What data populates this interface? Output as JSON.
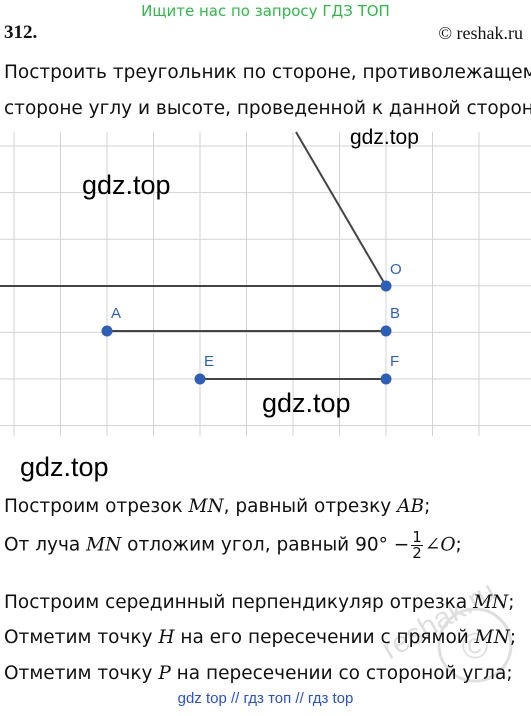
{
  "header": {
    "banner": "Ищите нас по запросу ГДЗ ТОП",
    "problem_number": "312.",
    "copyright": "© reshak.ru"
  },
  "task": {
    "line1": "Построить треугольник по стороне, противолежащему",
    "line2": "стороне углу и высоте, проведенной к данной стороне:"
  },
  "watermarks": {
    "w1": "gdz.top",
    "w2": "gdz.top",
    "w3": "gdz.top",
    "w4": "gdz.top"
  },
  "figure": {
    "points": [
      {
        "label": "O"
      },
      {
        "label": "A"
      },
      {
        "label": "B"
      },
      {
        "label": "E"
      },
      {
        "label": "F"
      }
    ],
    "point_color": "#2e5fb8",
    "grid_color": "#d3d3d3"
  },
  "solution": {
    "s1_pre": "Построим отрезок ",
    "s1_m1": "MN",
    "s1_mid": ", равный отрезку ",
    "s1_m2": "AB",
    "s1_end": ";",
    "s2_pre": "От луча ",
    "s2_m1": "MN",
    "s2_mid": " отложим угол, равный 90° −",
    "s2_num": "1",
    "s2_den": "2",
    "s2_angle": "∠O",
    "s2_end": ";",
    "s3_pre": "Построим серединный перпендикуляр отрезка ",
    "s3_m1": "MN",
    "s3_end": ";",
    "s4_pre": "Отметим точку ",
    "s4_m1": "H",
    "s4_mid": " на его пересечении с прямой ",
    "s4_m2": "MN",
    "s4_end": ";",
    "s5_pre": "Отметим точку ",
    "s5_m1": "P",
    "s5_end": " на пересечении со стороной угла;"
  },
  "footer": {
    "text": "gdz top  //  гдз топ  //  гдз top"
  },
  "stamp": {
    "text": "reshak.ru"
  }
}
